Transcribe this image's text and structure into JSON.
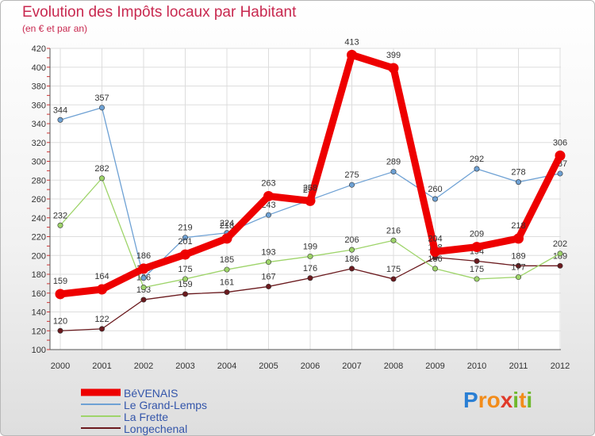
{
  "header": {
    "title": "Evolution des Impôts locaux par Habitant",
    "subtitle": "(en € et par an)"
  },
  "brand": {
    "letters": [
      "P",
      "r",
      "o",
      "x",
      "i",
      "t",
      "i"
    ],
    "colors": [
      "#2a7fd4",
      "#f28c1a",
      "#f28c1a",
      "#e03a2a",
      "#6fb82c",
      "#f28c1a",
      "#6fb82c"
    ]
  },
  "chart_data": {
    "type": "line",
    "title": "Evolution des Impôts locaux par Habitant",
    "xlabel": "",
    "ylabel": "(en € et par an)",
    "categories": [
      "2000",
      "2001",
      "2002",
      "2003",
      "2004",
      "2005",
      "2006",
      "2007",
      "2008",
      "2009",
      "2010",
      "2011",
      "2012"
    ],
    "ylim": [
      100,
      420
    ],
    "yticks": [
      100,
      120,
      140,
      160,
      180,
      200,
      220,
      240,
      260,
      280,
      300,
      320,
      340,
      360,
      380,
      400,
      420
    ],
    "grid": true,
    "series": [
      {
        "name": "Longechenal",
        "color": "#6b1a1e",
        "values": [
          120,
          122,
          153,
          159,
          161,
          167,
          176,
          186,
          175,
          198,
          194,
          189,
          189
        ],
        "labels": [
          "120",
          "122",
          "153",
          "159",
          "161",
          "167",
          "176",
          "186",
          "175",
          "198",
          "194",
          "189",
          "189"
        ]
      },
      {
        "name": "La Frette",
        "color": "#9ed46a",
        "values": [
          232,
          282,
          166,
          175,
          185,
          193,
          199,
          206,
          216,
          186,
          175,
          177,
          202
        ],
        "labels": [
          "232",
          "282",
          "166",
          "175",
          "185",
          "193",
          "199",
          "206",
          "216",
          "186",
          "175",
          "177",
          "202"
        ]
      },
      {
        "name": "Le Grand-Lemps",
        "color": "#6ea1d4",
        "values": [
          344,
          357,
          176,
          219,
          224,
          243,
          259,
          275,
          289,
          260,
          292,
          278,
          287
        ],
        "labels": [
          "344",
          "357",
          "176",
          "219",
          "224",
          "243",
          "259",
          "275",
          "289",
          "260",
          "292",
          "278",
          "287"
        ]
      },
      {
        "name": "BéVENAIS",
        "color": "#ee0000",
        "values": [
          159,
          164,
          186,
          201,
          218,
          263,
          258,
          413,
          399,
          204,
          209,
          218,
          306
        ],
        "labels": [
          "159",
          "164",
          "186",
          "201",
          "218",
          "263",
          "258",
          "413",
          "399",
          "204",
          "209",
          "218",
          "306"
        ]
      }
    ],
    "legend": [
      "BéVENAIS",
      "Le Grand-Lemps",
      "La Frette",
      "Longechenal"
    ],
    "legend_placement": "bottom-left"
  }
}
